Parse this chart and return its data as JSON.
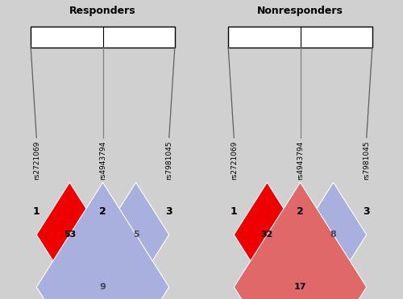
{
  "background_color": "#d0d0d0",
  "fig_width": 5.0,
  "fig_height": 3.71,
  "panels": [
    {
      "title": "Responders",
      "snps": [
        "rs2721069",
        "rs4943794",
        "rs7981045"
      ],
      "numbers": [
        "1",
        "2",
        "3"
      ],
      "diamonds": [
        {
          "idx": [
            0,
            1
          ],
          "value": 53,
          "color": "#ee0000",
          "text_color": "black"
        },
        {
          "idx": [
            1,
            2
          ],
          "value": 5,
          "color": "#aab0dd",
          "text_color": "#444466"
        },
        {
          "idx": [
            0,
            2
          ],
          "value": 9,
          "color": "#aab0dd",
          "text_color": "#444466"
        }
      ]
    },
    {
      "title": "Nonresponders",
      "snps": [
        "rs2721069",
        "rs4943794",
        "rs7981045"
      ],
      "numbers": [
        "1",
        "2",
        "3"
      ],
      "diamonds": [
        {
          "idx": [
            0,
            1
          ],
          "value": 32,
          "color": "#ee0000",
          "text_color": "black"
        },
        {
          "idx": [
            1,
            2
          ],
          "value": 8,
          "color": "#aab0dd",
          "text_color": "#444466"
        },
        {
          "idx": [
            0,
            2
          ],
          "value": 17,
          "color": "#e06868",
          "text_color": "black"
        }
      ]
    }
  ]
}
